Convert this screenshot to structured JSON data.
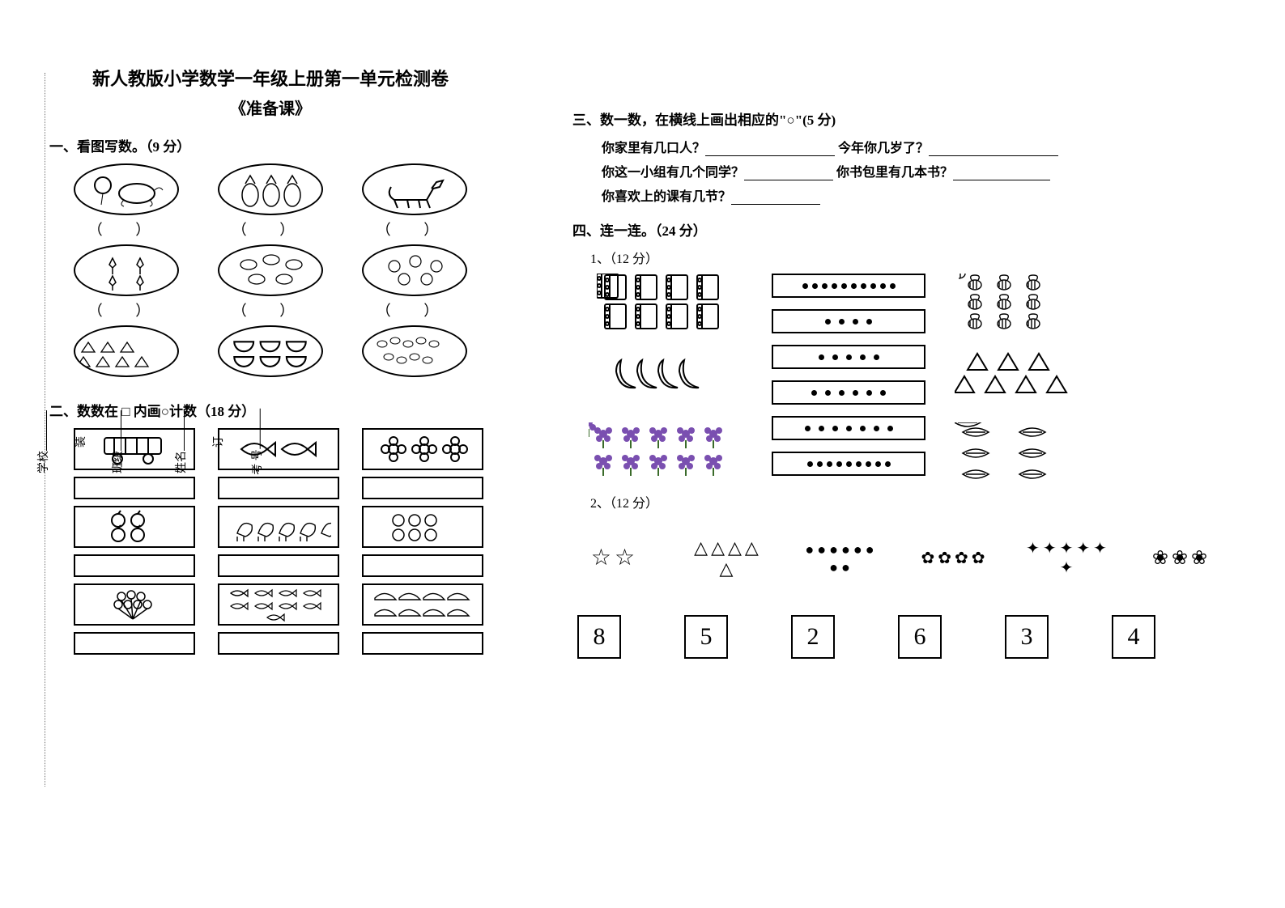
{
  "colors": {
    "text": "#000000",
    "background": "#ffffff",
    "flower_purple": "#7a4fb0",
    "dotted": "#777777"
  },
  "typography": {
    "title_fontsize": 22,
    "subtitle_fontsize": 20,
    "section_fontsize": 17,
    "body_fontsize": 16,
    "numbox_fontsize": 30,
    "font_family": "SimSun / 宋体"
  },
  "binding": {
    "labels": [
      "考 号",
      "订",
      "姓名",
      "班级",
      "装",
      "学校"
    ]
  },
  "title": "新人教版小学数学一年级上册第一单元检测卷",
  "subtitle": "《准备课》",
  "section1": {
    "heading": "一、看图写数。（9 分）",
    "cells": [
      {
        "desc": "balloons-tortoise",
        "count": 2
      },
      {
        "desc": "pineapples",
        "count": 3
      },
      {
        "desc": "donkey",
        "count": 1
      },
      {
        "desc": "tulips",
        "count": 4
      },
      {
        "desc": "turtles",
        "count": 5
      },
      {
        "desc": "crabs",
        "count": 5
      },
      {
        "desc": "baskets",
        "count": 7
      },
      {
        "desc": "watermelon-halves",
        "count": 6
      },
      {
        "desc": "corn",
        "count": 9
      }
    ]
  },
  "section2": {
    "heading": "二、数数在 □ 内画○计数（18 分）",
    "cells": [
      {
        "desc": "bus",
        "count": 1
      },
      {
        "desc": "fish",
        "count": 2
      },
      {
        "desc": "flower-outline",
        "count": 3
      },
      {
        "desc": "apple",
        "count": 4
      },
      {
        "desc": "rooster",
        "count": 5
      },
      {
        "desc": "peach",
        "count": 6
      },
      {
        "desc": "balloon-bunch",
        "count": 7
      },
      {
        "desc": "small-fish",
        "count": 9
      },
      {
        "desc": "shoe",
        "count": 8
      }
    ]
  },
  "section3": {
    "heading": "三、数一数，在横线上画出相应的\"○\"(5 分)",
    "q1a": "你家里有几口人？",
    "q1b": "今年你几岁了？",
    "q2a": "你这一小组有几个同学？",
    "q2b": "你书包里有几本书？",
    "q3": "你喜欢上的课有几节？"
  },
  "section4": {
    "heading": "四、连一连。（24 分）",
    "part1": {
      "label": "1、（12 分）",
      "left_groups": [
        {
          "desc": "notebooks",
          "count": 8
        },
        {
          "desc": "bananas",
          "count": 4
        },
        {
          "desc": "purple-flowers",
          "count": 10
        }
      ],
      "dot_boxes": [
        10,
        4,
        5,
        6,
        7,
        9
      ],
      "right_groups": [
        {
          "desc": "bees",
          "count": 9
        },
        {
          "desc": "triangles",
          "count": 7
        },
        {
          "desc": "leaves",
          "count": 6
        }
      ]
    },
    "part2": {
      "label": "2、（12 分）",
      "top_groups": [
        {
          "desc": "stars",
          "count": 2,
          "glyph": "☆",
          "size": 28
        },
        {
          "desc": "triangles",
          "count": 5,
          "glyph": "△",
          "size": 22
        },
        {
          "desc": "tomatoes",
          "count": 8,
          "glyph": "●",
          "size": 18
        },
        {
          "desc": "frogs",
          "count": 4,
          "glyph": "✿",
          "size": 20
        },
        {
          "desc": "pineapples",
          "count": 6,
          "glyph": "✦",
          "size": 20
        },
        {
          "desc": "radishes",
          "count": 3,
          "glyph": "❀",
          "size": 24
        }
      ],
      "numbers": [
        8,
        5,
        2,
        6,
        3,
        4
      ]
    }
  }
}
